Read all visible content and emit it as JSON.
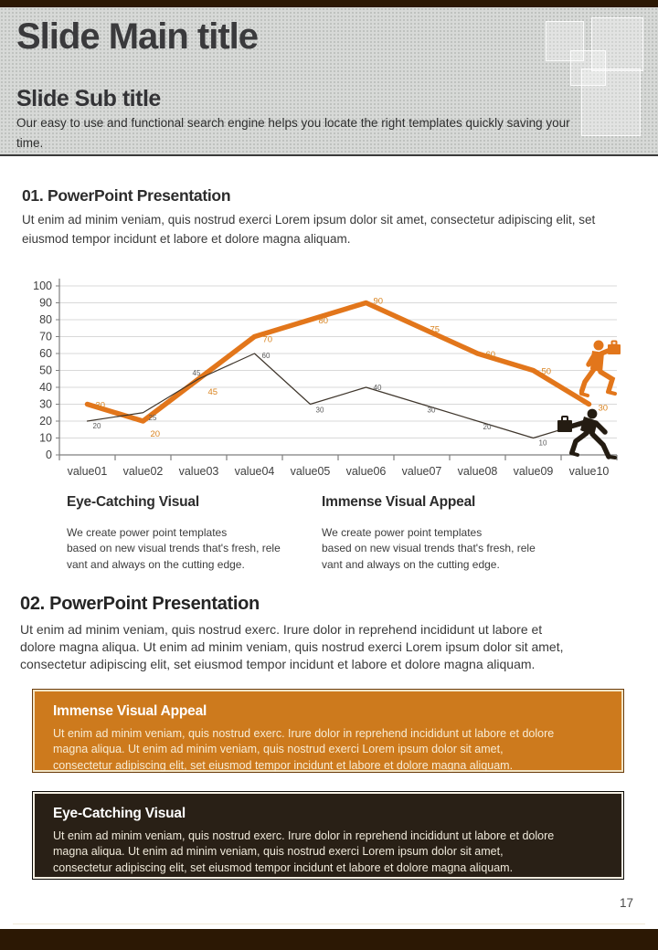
{
  "header": {
    "main_title": "Slide Main title",
    "sub_title": "Slide Sub title",
    "description": [
      "Our easy to use and functional search engine helps you locate the right templates quickly saving your",
      "time."
    ]
  },
  "section1": {
    "heading": "01. PowerPoint Presentation",
    "body": "Ut enim ad minim veniam, quis nostrud exerci  Lorem ipsum dolor sit amet, consectetur adipiscing elit, set eiusmod tempor incidunt et labore et dolore magna aliquam.",
    "columns": [
      {
        "title": "Eye-Catching Visual",
        "body": [
          "We create power point templates",
          "based on new visual trends that's fresh, rele",
          "vant and always on the cutting edge."
        ]
      },
      {
        "title": "Immense Visual Appeal",
        "body": [
          "We create power point templates",
          "based on new visual trends that's fresh, rele",
          "vant and always on the cutting edge."
        ]
      }
    ]
  },
  "chart_data": {
    "type": "line",
    "categories": [
      "value01",
      "value02",
      "value03",
      "value04",
      "value05",
      "value06",
      "value07",
      "value08",
      "value09",
      "value10"
    ],
    "series": [
      {
        "name": "orange-series",
        "color": "#e2761b",
        "label_color": "#d9831f",
        "stroke_width": 5.5,
        "values": [
          30,
          20,
          45,
          70,
          80,
          90,
          75,
          60,
          50,
          30
        ],
        "labels": [
          "30",
          "20",
          "45",
          "70",
          "80",
          "90",
          "75",
          "60",
          "50",
          "30"
        ]
      },
      {
        "name": "dark-series",
        "color": "#3f362c",
        "label_color": "#5a5a5a",
        "stroke_width": 1.2,
        "values": [
          20,
          25,
          45,
          60,
          30,
          40,
          30,
          20,
          10,
          20
        ],
        "labels": [
          "20",
          "25",
          "45",
          "60",
          "30",
          "40",
          "30",
          "20",
          "10",
          null
        ]
      }
    ],
    "title": "",
    "xlabel": "",
    "ylabel": "",
    "ylim": [
      0,
      100
    ],
    "ytick_step": 10,
    "grid": true,
    "legend": false,
    "grid_color": "#d9d9d9",
    "axis_color": "#7f7f7f",
    "tick_label_color": "#3f3f3f"
  },
  "section2": {
    "heading": "02. PowerPoint Presentation",
    "body": [
      "Ut enim ad minim veniam, quis nostrud exerc. Irure dolor in reprehend incididunt ut labore et",
      "dolore magna aliqua. Ut enim ad minim veniam, quis nostrud exerci  Lorem ipsum dolor sit amet,",
      "consectetur adipiscing elit, set eiusmod tempor incidunt et labore et dolore magna aliquam."
    ]
  },
  "boxes": [
    {
      "style": "orange",
      "title": "Immense Visual Appeal",
      "body": [
        "Ut enim ad minim veniam, quis nostrud exerc. Irure dolor in reprehend incididunt ut labore et dolore",
        "magna aliqua. Ut enim ad minim veniam, quis nostrud exerci  Lorem ipsum dolor sit amet,",
        "consectetur adipiscing elit, set eiusmod tempor incidunt et labore et dolore magna aliquam."
      ]
    },
    {
      "style": "dark",
      "title": "Eye-Catching Visual",
      "body": [
        "Ut enim ad minim veniam, quis nostrud exerc. Irure dolor in reprehend incididunt ut labore et dolore",
        "magna aliqua. Ut enim ad minim veniam, quis nostrud exerci  Lorem ipsum dolor sit amet,",
        "consectetur adipiscing elit, set eiusmod tempor incidunt et labore et dolore magna aliquam."
      ]
    }
  ],
  "footer": {
    "page_number": "17"
  },
  "colors": {
    "accent_orange": "#e2761b",
    "box_orange": "#cd7a1d",
    "box_dark": "#292016",
    "bar_brown": "#2c1804",
    "header_gray": "#d7d9d7"
  }
}
